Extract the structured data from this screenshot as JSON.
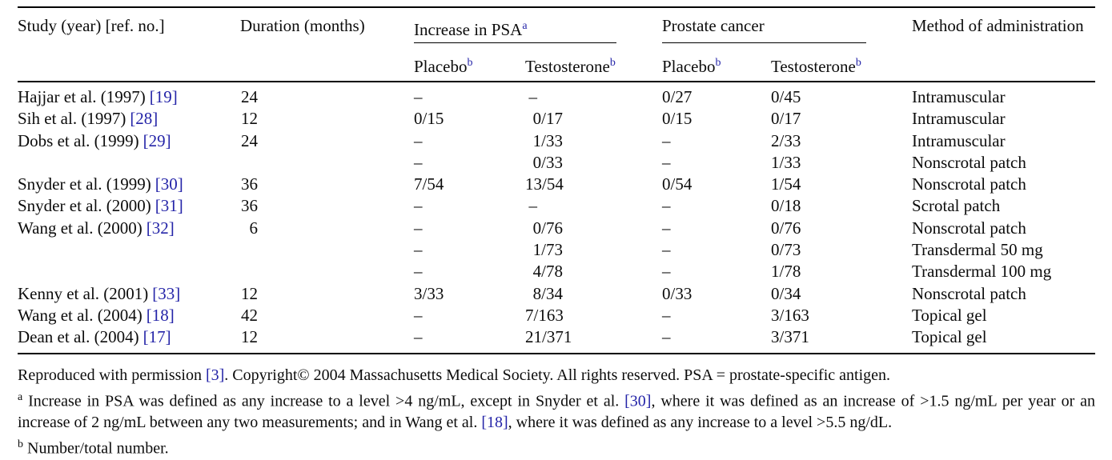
{
  "table": {
    "headers": {
      "study": "Study (year) [ref. no.]",
      "duration": "Duration (months)",
      "psa_group": "Increase in PSA",
      "psa_group_sup": "a",
      "pc_group": "Prostate cancer",
      "placebo": "Placebo",
      "testosterone": "Testosterone",
      "sub_sup": "b",
      "method": "Method of administration"
    },
    "rows": [
      {
        "study": "Hajjar et al. (1997)",
        "ref": "[19]",
        "duration": "24",
        "psa_placebo": "–",
        "psa_testosterone": "–",
        "pc_placebo": "0/27",
        "pc_testosterone": "0/45",
        "method": "Intramuscular"
      },
      {
        "study": "Sih et al. (1997)",
        "ref": "[28]",
        "duration": "12",
        "psa_placebo": "0/15",
        "psa_testosterone": "0/17",
        "pc_placebo": "0/15",
        "pc_testosterone": "0/17",
        "method": "Intramuscular"
      },
      {
        "study": "Dobs et al. (1999)",
        "ref": "[29]",
        "duration": "24",
        "psa_placebo": "–",
        "psa_testosterone": "1/33",
        "pc_placebo": "–",
        "pc_testosterone": "2/33",
        "method": "Intramuscular"
      },
      {
        "study": "",
        "ref": "",
        "duration": "",
        "psa_placebo": "–",
        "psa_testosterone": "0/33",
        "pc_placebo": "–",
        "pc_testosterone": "1/33",
        "method": "Nonscrotal patch"
      },
      {
        "study": "Snyder et al. (1999)",
        "ref": "[30]",
        "duration": "36",
        "psa_placebo": "7/54",
        "psa_testosterone": "13/54",
        "pc_placebo": "0/54",
        "pc_testosterone": "1/54",
        "method": "Nonscrotal patch"
      },
      {
        "study": "Snyder et al. (2000)",
        "ref": "[31]",
        "duration": "36",
        "psa_placebo": "–",
        "psa_testosterone": "–",
        "pc_placebo": "–",
        "pc_testosterone": "0/18",
        "method": "Scrotal patch"
      },
      {
        "study": "Wang et al. (2000)",
        "ref": "[32]",
        "duration": "6",
        "psa_placebo": "–",
        "psa_testosterone": "0/76",
        "pc_placebo": "–",
        "pc_testosterone": "0/76",
        "method": "Nonscrotal patch"
      },
      {
        "study": "",
        "ref": "",
        "duration": "",
        "psa_placebo": "–",
        "psa_testosterone": "1/73",
        "pc_placebo": "–",
        "pc_testosterone": "0/73",
        "method": "Transdermal 50 mg"
      },
      {
        "study": "",
        "ref": "",
        "duration": "",
        "psa_placebo": "–",
        "psa_testosterone": "4/78",
        "pc_placebo": "–",
        "pc_testosterone": "1/78",
        "method": "Transdermal 100 mg"
      },
      {
        "study": "Kenny et al. (2001)",
        "ref": "[33]",
        "duration": "12",
        "psa_placebo": "3/33",
        "psa_testosterone": "8/34",
        "pc_placebo": "0/33",
        "pc_testosterone": "0/34",
        "method": "Nonscrotal patch"
      },
      {
        "study": "Wang et al. (2004)",
        "ref": "[18]",
        "duration": "42",
        "psa_placebo": "–",
        "psa_testosterone": "7/163",
        "pc_placebo": "–",
        "pc_testosterone": "3/163",
        "method": "Topical gel"
      },
      {
        "study": "Dean et al. (2004)",
        "ref": "[17]",
        "duration": "12",
        "psa_placebo": "–",
        "psa_testosterone": "21/371",
        "pc_placebo": "–",
        "pc_testosterone": "3/371",
        "method": "Topical gel"
      }
    ]
  },
  "footnotes": {
    "permission": {
      "pre": "Reproduced with permission ",
      "ref": "[3]",
      "post": ". Copyright© 2004 Massachusetts Medical Society. All rights reserved. PSA = prostate-specific antigen."
    },
    "a": {
      "sup": "a",
      "line1_pre": "Increase in PSA was defined as any increase to a level >4 ng/mL, except in Snyder et al. ",
      "line1_ref": "[30]",
      "line1_post": ", where it was defined as an increase of >1.5 ng/mL per year or an",
      "line2_pre": "increase of 2 ng/mL between any two measurements; and in Wang et al. ",
      "line2_ref": "[18]",
      "line2_post": ", where it was defined as any increase to a level >5.5 ng/dL."
    },
    "b": {
      "sup": "b",
      "text": "Number/total number."
    }
  },
  "colors": {
    "link_blue": "#2424a8",
    "text": "#0c0c0c",
    "rule": "#000000"
  }
}
